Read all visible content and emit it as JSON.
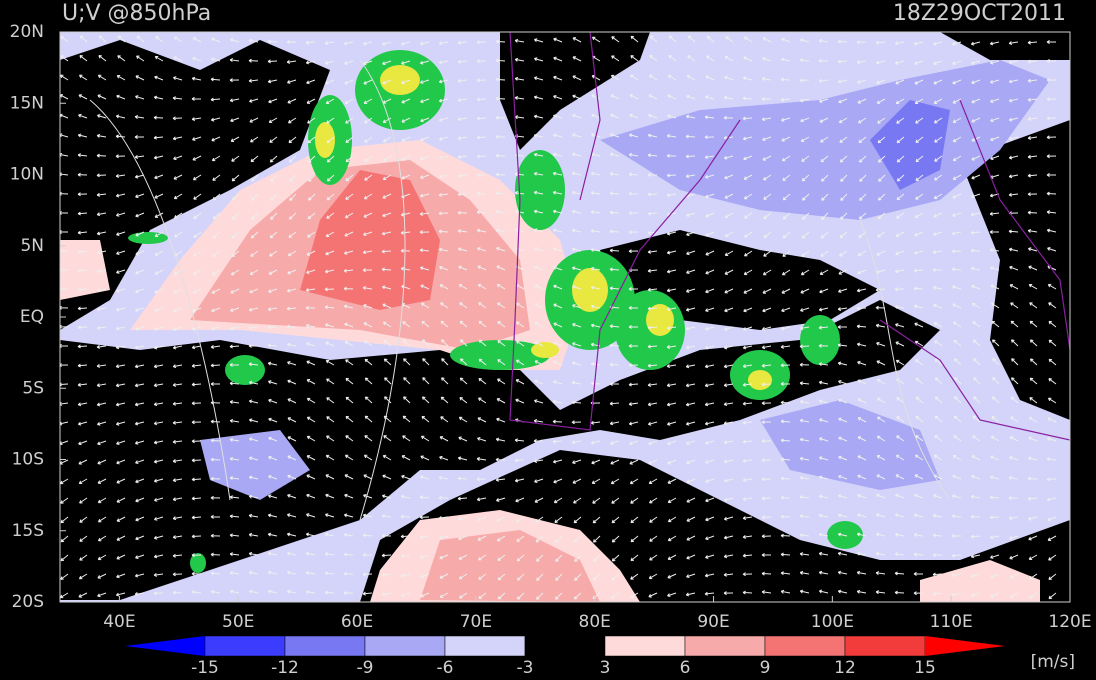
{
  "header": {
    "title": "U;V @850hPa",
    "time": "18Z29OCT2011"
  },
  "map": {
    "lat_labels": [
      "20N",
      "15N",
      "10N",
      "5N",
      "EQ",
      "5S",
      "10S",
      "15S",
      "20S"
    ],
    "lon_labels": [
      "40E",
      "50E",
      "60E",
      "70E",
      "80E",
      "90E",
      "100E",
      "110E",
      "120E"
    ]
  },
  "colorbar": {
    "levels": [
      -15,
      -12,
      -9,
      -6,
      -3,
      3,
      6,
      9,
      12,
      15
    ],
    "colors": [
      "#0000ff",
      "#3c3cff",
      "#7878f2",
      "#a8a8f4",
      "#d4d4fa",
      "#000000",
      "#ffdada",
      "#f7aaaa",
      "#f47474",
      "#f23c3c",
      "#ff0000"
    ],
    "unit": "[m/s]"
  }
}
